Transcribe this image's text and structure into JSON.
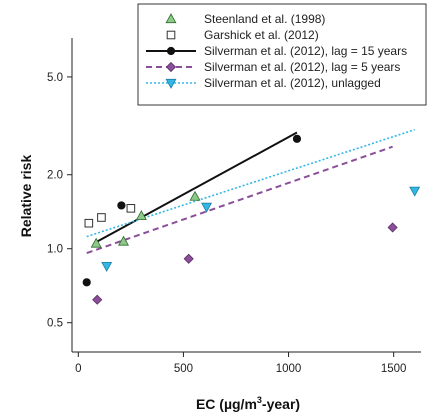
{
  "chart_data": {
    "type": "scatter",
    "xlabel": "EC (µg/m3-year)",
    "xlabel_parts": {
      "base": "EC (µg/m",
      "sup": "3",
      "tail": "-year)"
    },
    "ylabel": "Relative risk",
    "xlim": [
      -30,
      1630
    ],
    "ylim": [
      0.38,
      7.2
    ],
    "y_scale": "log",
    "x_ticks": [
      0,
      500,
      1000,
      1500
    ],
    "x_tick_labels": [
      "0",
      "500",
      "1000",
      "1500"
    ],
    "y_ticks": [
      0.5,
      1.0,
      2.0,
      5.0
    ],
    "y_tick_labels": [
      "0.5",
      "1.0",
      "2.0",
      "5.0"
    ],
    "grid": false,
    "legend_position": "top-right",
    "series": [
      {
        "name": "Steenland et al. (1998)",
        "kind": "points",
        "marker": "triangle-up",
        "color": "#8fc98a",
        "stroke": "#2e6b2e",
        "points": [
          [
            85,
            1.05
          ],
          [
            215,
            1.07
          ],
          [
            300,
            1.36
          ],
          [
            555,
            1.63
          ]
        ]
      },
      {
        "name": "Garshick et al. (2012)",
        "kind": "points",
        "marker": "square-open",
        "color": "#ffffff",
        "stroke": "#333333",
        "points": [
          [
            50,
            1.27
          ],
          [
            110,
            1.34
          ],
          [
            250,
            1.46
          ]
        ]
      },
      {
        "name": "Silverman et al. (2012), lag = 15 years",
        "kind": "line+points",
        "marker": "circle",
        "color": "#111111",
        "line_dash": "solid",
        "line": [
          [
            90,
            1.07
          ],
          [
            1040,
            2.97
          ]
        ],
        "points": [
          [
            40,
            0.73
          ],
          [
            205,
            1.5
          ],
          [
            1040,
            2.8
          ]
        ]
      },
      {
        "name": "Silverman et al. (2012), lag = 5 years",
        "kind": "line+points",
        "marker": "diamond",
        "color": "#8b4f9a",
        "line_dash": "dashed",
        "line": [
          [
            40,
            0.96
          ],
          [
            1495,
            2.6
          ]
        ],
        "points": [
          [
            90,
            0.62
          ],
          [
            525,
            0.91
          ],
          [
            1495,
            1.22
          ]
        ]
      },
      {
        "name": "Silverman et al. (2012), unlagged",
        "kind": "line+points",
        "marker": "triangle-down",
        "color": "#33b8e6",
        "line_dash": "dotted",
        "line": [
          [
            40,
            1.12
          ],
          [
            1600,
            3.05
          ]
        ],
        "points": [
          [
            135,
            0.85
          ],
          [
            610,
            1.48
          ],
          [
            1600,
            1.72
          ]
        ]
      }
    ]
  }
}
